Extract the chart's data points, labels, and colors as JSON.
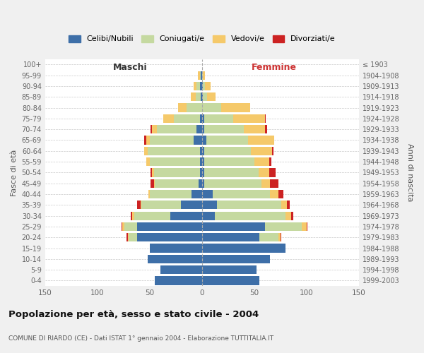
{
  "age_groups": [
    "0-4",
    "5-9",
    "10-14",
    "15-19",
    "20-24",
    "25-29",
    "30-34",
    "35-39",
    "40-44",
    "45-49",
    "50-54",
    "55-59",
    "60-64",
    "65-69",
    "70-74",
    "75-79",
    "80-84",
    "85-89",
    "90-94",
    "95-99",
    "100+"
  ],
  "birth_years": [
    "1999-2003",
    "1994-1998",
    "1989-1993",
    "1984-1988",
    "1979-1983",
    "1974-1978",
    "1969-1973",
    "1964-1968",
    "1959-1963",
    "1954-1958",
    "1949-1953",
    "1944-1948",
    "1939-1943",
    "1934-1938",
    "1929-1933",
    "1924-1928",
    "1919-1923",
    "1914-1918",
    "1909-1913",
    "1904-1908",
    "≤ 1903"
  ],
  "male": {
    "celibi": [
      45,
      40,
      52,
      50,
      62,
      62,
      30,
      20,
      10,
      3,
      2,
      2,
      2,
      8,
      5,
      2,
      0,
      1,
      2,
      1,
      0
    ],
    "coniugati": [
      0,
      0,
      0,
      0,
      8,
      12,
      35,
      38,
      40,
      42,
      44,
      48,
      50,
      42,
      38,
      25,
      15,
      5,
      3,
      1,
      0
    ],
    "vedovi": [
      0,
      0,
      0,
      0,
      1,
      2,
      2,
      1,
      1,
      1,
      2,
      3,
      3,
      3,
      5,
      10,
      8,
      5,
      3,
      2,
      0
    ],
    "divorziati": [
      0,
      0,
      0,
      0,
      1,
      1,
      1,
      3,
      0,
      3,
      1,
      0,
      0,
      2,
      1,
      0,
      0,
      0,
      0,
      0,
      0
    ]
  },
  "female": {
    "nubili": [
      55,
      52,
      65,
      80,
      55,
      60,
      12,
      14,
      10,
      2,
      2,
      2,
      2,
      4,
      2,
      2,
      0,
      1,
      1,
      0,
      0
    ],
    "coniugate": [
      0,
      0,
      0,
      0,
      18,
      35,
      68,
      62,
      55,
      55,
      52,
      48,
      45,
      40,
      38,
      28,
      18,
      4,
      2,
      1,
      0
    ],
    "vedove": [
      0,
      0,
      0,
      0,
      2,
      5,
      5,
      5,
      8,
      8,
      10,
      14,
      20,
      25,
      20,
      30,
      28,
      8,
      5,
      2,
      0
    ],
    "divorziate": [
      0,
      0,
      0,
      0,
      1,
      1,
      2,
      3,
      5,
      8,
      6,
      2,
      1,
      0,
      2,
      1,
      0,
      0,
      0,
      0,
      0
    ]
  },
  "colors": {
    "celibi_nubili": "#3e6fa8",
    "coniugati": "#c5d9a0",
    "vedovi": "#f5c96a",
    "divorziati": "#cc2222"
  },
  "xlim": 150,
  "title": "Popolazione per età, sesso e stato civile - 2004",
  "subtitle": "COMUNE DI RIARDO (CE) - Dati ISTAT 1° gennaio 2004 - Elaborazione TUTTITALIA.IT",
  "ylabel_left": "Fasce di età",
  "ylabel_right": "Anni di nascita",
  "xlabel_left": "Maschi",
  "xlabel_right": "Femmine",
  "legend_labels": [
    "Celibi/Nubili",
    "Coniugati/e",
    "Vedovi/e",
    "Divorziati/e"
  ],
  "bg_color": "#f0f0f0",
  "bar_bg_color": "#ffffff"
}
